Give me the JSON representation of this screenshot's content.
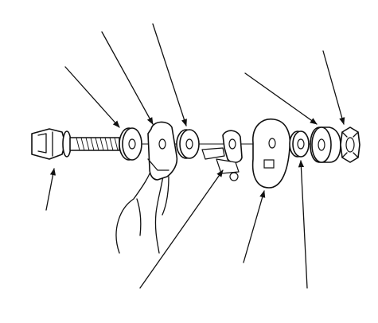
{
  "diagram": {
    "parts": [
      {
        "id": "flange-bolt"
      },
      {
        "id": "flat-washer-1"
      },
      {
        "id": "bracket"
      },
      {
        "id": "flat-washer-2"
      },
      {
        "id": "clip-bracket"
      },
      {
        "id": "adjusting-cam-plate"
      },
      {
        "id": "flat-washer-3"
      },
      {
        "id": "bushing"
      },
      {
        "id": "flange-nut"
      }
    ],
    "leader_count": 9
  }
}
